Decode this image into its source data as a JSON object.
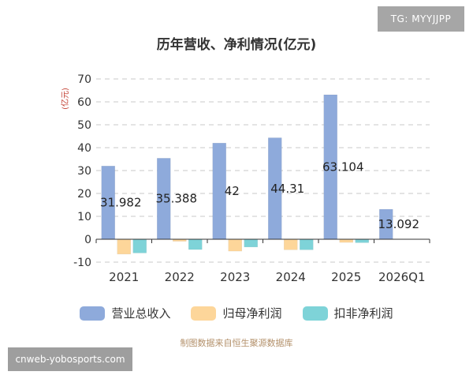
{
  "watermark": {
    "tag": "TG: MYYJJPP",
    "site": "cnweb-yobosports.com"
  },
  "chart_data": {
    "type": "bar",
    "title": "历年营收、净利情况(亿元)",
    "ylabel": "(亿元)",
    "categories": [
      "2021",
      "2022",
      "2023",
      "2024",
      "2025",
      "2026Q1"
    ],
    "ylim": [
      -10,
      70
    ],
    "yticks": [
      -10,
      0,
      10,
      20,
      30,
      40,
      50,
      60,
      70
    ],
    "grid": true,
    "legend_position": "bottom",
    "series": [
      {
        "name": "营业总收入",
        "color": "#8eaadb",
        "values": [
          31.982,
          35.388,
          42,
          44.31,
          63.104,
          13.092
        ],
        "labels": [
          "31.982",
          "35.388",
          "42",
          "44.31",
          "63.104",
          "13.092"
        ]
      },
      {
        "name": "归母净利润",
        "color": "#fdd69a",
        "values": [
          -6.5,
          -0.9,
          -5.2,
          -4.6,
          -1.4,
          null
        ]
      },
      {
        "name": "扣非净利润",
        "color": "#7ed3d8",
        "values": [
          -6.0,
          -4.5,
          -3.4,
          -4.6,
          -1.5,
          null
        ]
      }
    ]
  },
  "footer": {
    "source": "制图数据来自恒生聚源数据库"
  }
}
